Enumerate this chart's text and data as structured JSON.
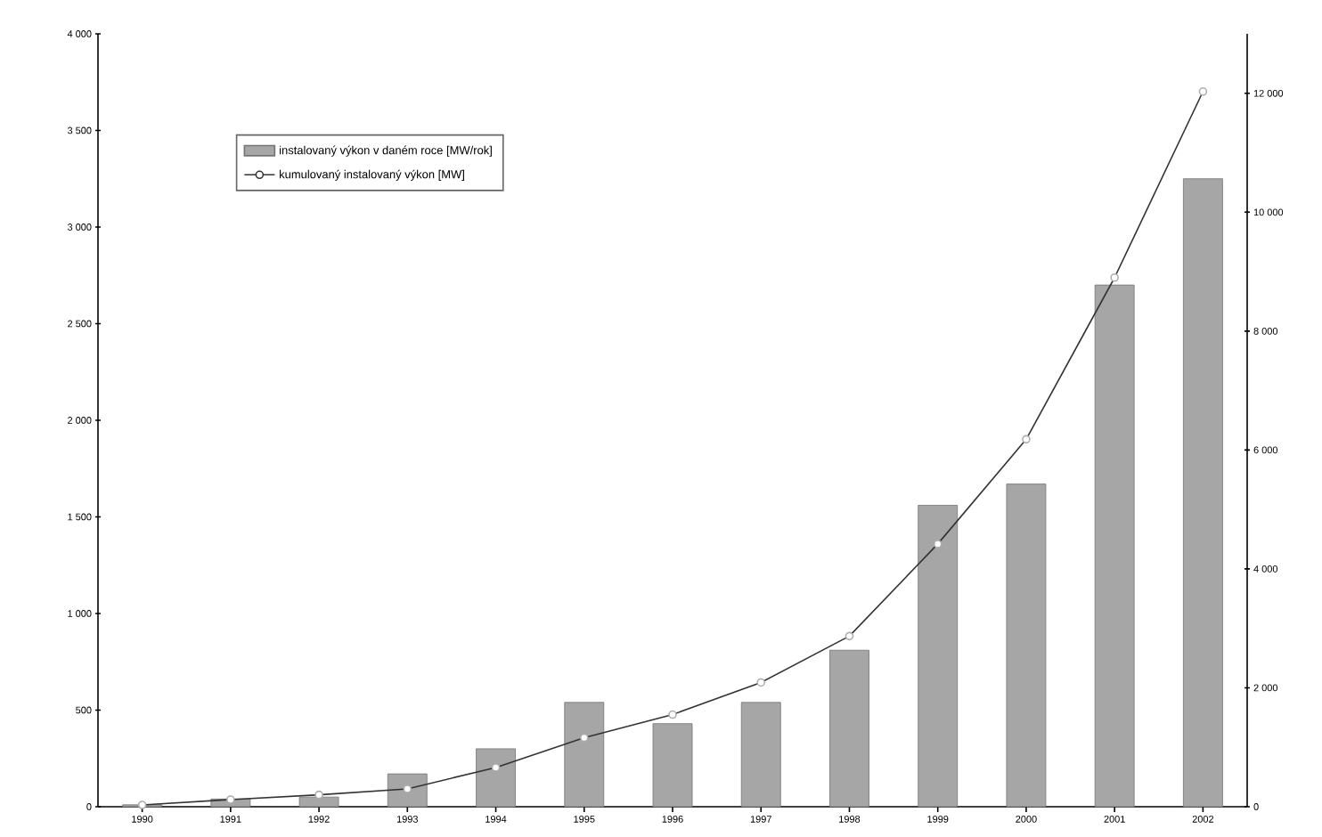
{
  "chart_data": {
    "type": "bar",
    "categories": [
      "1990",
      "1991",
      "1992",
      "1993",
      "1994",
      "1995",
      "1996",
      "1997",
      "1998",
      "1999",
      "2000",
      "2001",
      "2002"
    ],
    "series": [
      {
        "name": "instalovaný výkon v daném roce  [MW/rok]",
        "color": "#a6a6a6",
        "values": [
          10,
          40,
          50,
          170,
          300,
          540,
          430,
          540,
          810,
          1560,
          1670,
          2700,
          3250
        ]
      },
      {
        "name": "kumulovaný instalovaný výkon [MW]",
        "type": "line",
        "axis": "y2",
        "color": "#333333",
        "marker": "circle",
        "values": [
          30,
          120,
          200,
          300,
          660,
          1160,
          1550,
          2090,
          2870,
          4420,
          6180,
          8900,
          12030
        ]
      }
    ],
    "ylim": [
      0,
      4000
    ],
    "yticks": [
      0,
      500,
      {
        "value": 1000,
        "label": "1 000"
      },
      {
        "value": 1500,
        "label": "1 500"
      },
      {
        "value": 2000,
        "label": "2 000"
      },
      {
        "value": 2500,
        "label": "2 500"
      },
      {
        "value": 3000,
        "label": "3 000"
      },
      {
        "value": 3500,
        "label": "3 500"
      },
      {
        "value": 4000,
        "label": "4 000"
      }
    ],
    "y2lim": [
      0,
      13000
    ],
    "y2ticks": [
      0,
      {
        "value": 2000,
        "label": "2 000"
      },
      {
        "value": 4000,
        "label": "4 000"
      },
      {
        "value": 6000,
        "label": "6 000"
      },
      {
        "value": 8000,
        "label": "8 000"
      },
      {
        "value": 10000,
        "label": "10 000"
      },
      {
        "value": 12000,
        "label": "12 000"
      }
    ],
    "legend": "top left",
    "grid": false
  }
}
